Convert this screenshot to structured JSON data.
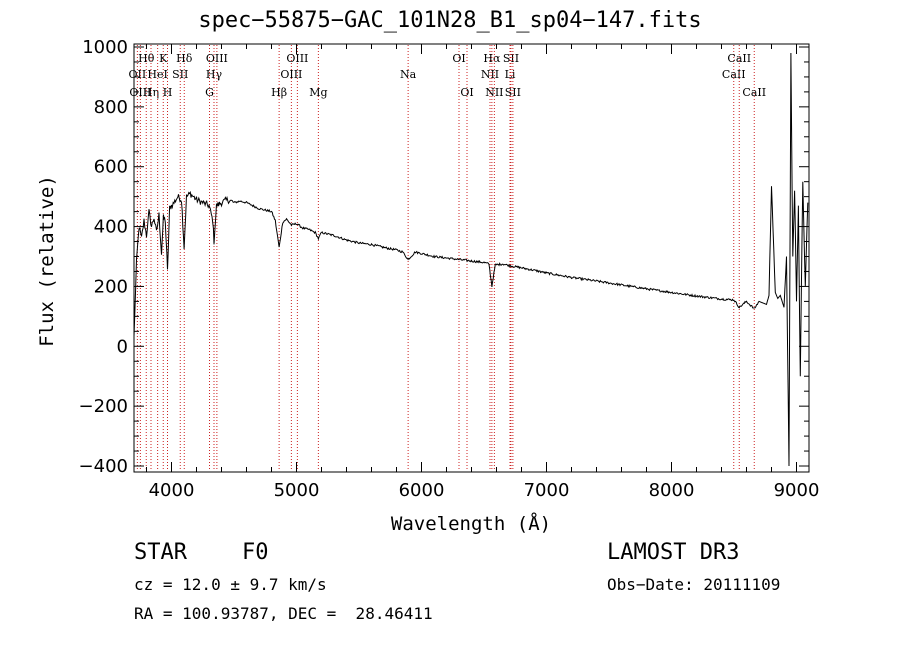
{
  "chart_data": {
    "type": "line",
    "title": "spec−55875−GAC_101N28_B1_sp04−147.fits",
    "xlabel": "Wavelength (Å)",
    "ylabel": "Flux (relative)",
    "xlim": [
      3700,
      9100
    ],
    "ylim": [
      -420,
      1010
    ],
    "xticks": [
      4000,
      5000,
      6000,
      7000,
      8000,
      9000
    ],
    "xtick_labels": [
      "4000",
      "5000",
      "6000",
      "7000",
      "8000",
      "9000"
    ],
    "yticks": [
      -400,
      -200,
      0,
      200,
      400,
      600,
      800,
      1000
    ],
    "ytick_labels": [
      "−400",
      "−200",
      "0",
      "200",
      "400",
      "600",
      "800",
      "1000"
    ],
    "line_color": "#000000",
    "marker_color": "#cc2222",
    "series": [
      {
        "name": "flux",
        "x": [
          3700,
          3720,
          3740,
          3760,
          3780,
          3800,
          3820,
          3840,
          3860,
          3880,
          3900,
          3920,
          3935,
          3950,
          3968,
          3985,
          4000,
          4020,
          4050,
          4080,
          4101,
          4120,
          4150,
          4200,
          4250,
          4300,
          4330,
          4340,
          4360,
          4400,
          4450,
          4500,
          4550,
          4600,
          4650,
          4700,
          4750,
          4800,
          4830,
          4861,
          4890,
          4920,
          4960,
          5000,
          5050,
          5100,
          5150,
          5175,
          5200,
          5300,
          5400,
          5500,
          5600,
          5700,
          5800,
          5850,
          5893,
          5950,
          6000,
          6100,
          6200,
          6300,
          6400,
          6500,
          6540,
          6563,
          6590,
          6650,
          6700,
          6800,
          6900,
          7000,
          7200,
          7400,
          7600,
          7800,
          8000,
          8200,
          8400,
          8500,
          8542,
          8600,
          8662,
          8700,
          8760,
          8780,
          8800,
          8830,
          8850,
          8870,
          8900,
          8920,
          8940,
          8955,
          8970,
          8985,
          9000,
          9015,
          9030,
          9050,
          9070,
          9090
        ],
        "y": [
          30,
          280,
          400,
          360,
          420,
          370,
          450,
          400,
          430,
          380,
          440,
          310,
          430,
          420,
          250,
          460,
          470,
          480,
          500,
          490,
          330,
          500,
          510,
          490,
          480,
          470,
          420,
          350,
          470,
          480,
          490,
          480,
          485,
          480,
          470,
          460,
          455,
          450,
          420,
          330,
          415,
          425,
          405,
          410,
          395,
          390,
          380,
          360,
          380,
          370,
          355,
          345,
          340,
          330,
          322,
          315,
          290,
          315,
          310,
          300,
          295,
          290,
          285,
          280,
          275,
          200,
          272,
          275,
          270,
          262,
          254,
          245,
          230,
          218,
          205,
          192,
          180,
          168,
          158,
          155,
          130,
          150,
          125,
          150,
          140,
          170,
          535,
          180,
          160,
          170,
          130,
          300,
          -400,
          980,
          300,
          520,
          150,
          470,
          -100,
          550,
          200,
          480
        ]
      }
    ],
    "line_markers": [
      {
        "wavelength": 3727,
        "label": "OII",
        "row": 2
      },
      {
        "wavelength": 3751,
        "label": "OIII",
        "row": 3
      },
      {
        "wavelength": 3798,
        "label": "Hθ",
        "row": 1
      },
      {
        "wavelength": 3836,
        "label": "Hη",
        "row": 3
      },
      {
        "wavelength": 3889,
        "label": "HeI",
        "row": 2
      },
      {
        "wavelength": 3934,
        "label": "K",
        "row": 1
      },
      {
        "wavelength": 3968,
        "label": "H",
        "row": 3
      },
      {
        "wavelength": 4070,
        "label": "SII",
        "row": 2
      },
      {
        "wavelength": 4102,
        "label": "Hδ",
        "row": 1
      },
      {
        "wavelength": 4304,
        "label": "G",
        "row": 3
      },
      {
        "wavelength": 4340,
        "label": "Hγ",
        "row": 2
      },
      {
        "wavelength": 4363,
        "label": "OIII",
        "row": 1
      },
      {
        "wavelength": 4861,
        "label": "Hβ",
        "row": 3
      },
      {
        "wavelength": 4959,
        "label": "OIII",
        "row": 2
      },
      {
        "wavelength": 5007,
        "label": "OIII",
        "row": 1
      },
      {
        "wavelength": 5175,
        "label": "Mg",
        "row": 3
      },
      {
        "wavelength": 5893,
        "label": "Na",
        "row": 2
      },
      {
        "wavelength": 6300,
        "label": "OI",
        "row": 1
      },
      {
        "wavelength": 6364,
        "label": "OI",
        "row": 3
      },
      {
        "wavelength": 6548,
        "label": "NII",
        "row": 2
      },
      {
        "wavelength": 6563,
        "label": "Hα",
        "row": 1
      },
      {
        "wavelength": 6583,
        "label": "NII",
        "row": 3
      },
      {
        "wavelength": 6708,
        "label": "Li",
        "row": 2
      },
      {
        "wavelength": 6716,
        "label": "SII",
        "row": 1
      },
      {
        "wavelength": 6731,
        "label": "SII",
        "row": 3
      },
      {
        "wavelength": 8498,
        "label": "CaII",
        "row": 2
      },
      {
        "wavelength": 8542,
        "label": "CaII",
        "row": 1
      },
      {
        "wavelength": 8662,
        "label": "CaII",
        "row": 3
      }
    ]
  },
  "info": {
    "object_class": "STAR",
    "subclass": "F0",
    "survey": "LAMOST DR3",
    "redshift_text": "cz = 12.0 ± 9.7 km/s",
    "obs_date_text": "Obs−Date: 20111109",
    "coords_text": "RA = 100.93787, DEC =  28.46411"
  }
}
